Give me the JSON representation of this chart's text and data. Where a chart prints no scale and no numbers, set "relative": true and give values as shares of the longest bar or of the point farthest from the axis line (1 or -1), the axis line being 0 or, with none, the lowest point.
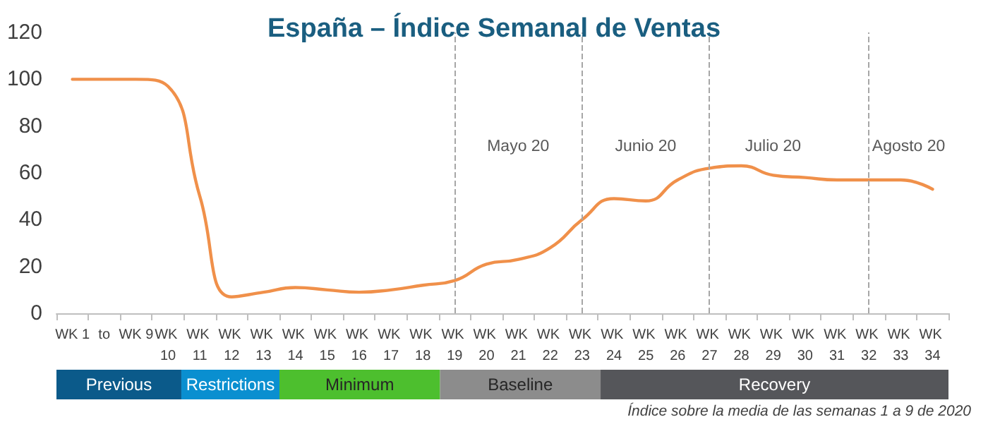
{
  "chart_data": [
    {
      "type": "line",
      "title": "España – Índice Semanal de Ventas",
      "categories": [
        "WK 1",
        "to",
        "WK 9",
        "WK 10",
        "WK 11",
        "WK 12",
        "WK 13",
        "WK 14",
        "WK 15",
        "WK 16",
        "WK 17",
        "WK 18",
        "WK 19",
        "WK 20",
        "WK 21",
        "WK 22",
        "WK 23",
        "WK 24",
        "WK 25",
        "WK 26",
        "WK 27",
        "WK 28",
        "WK 29",
        "WK 30",
        "WK 31",
        "WK 32",
        "WK 33",
        "WK 34"
      ],
      "series": [
        {
          "color": "#f0904a",
          "values": [
            100,
            100,
            100,
            97,
            50,
            7,
            9,
            11,
            10,
            9,
            10,
            12,
            14,
            21,
            23,
            28,
            40,
            49,
            48,
            57,
            62,
            63,
            59,
            58,
            57,
            57,
            57,
            53
          ]
        }
      ],
      "ylim": [
        0,
        120
      ],
      "yticks": [
        0,
        20,
        40,
        60,
        80,
        100,
        120
      ],
      "grid": false,
      "marker": "none",
      "line_style": "solid",
      "ref_lines": [
        {
          "axis": "x",
          "value": "WK 19",
          "label": "Mayo 20",
          "color": "#a6a6a6",
          "line_style": "dashed"
        },
        {
          "axis": "x",
          "value": "WK 23",
          "label": "Junio 20",
          "color": "#a6a6a6",
          "line_style": "dashed"
        },
        {
          "axis": "x",
          "value": "WK 27",
          "label": "Julio 20",
          "color": "#a6a6a6",
          "line_style": "dashed"
        },
        {
          "axis": "x",
          "value": "WK 32",
          "label": "Agosto 20",
          "color": "#a6a6a6",
          "line_style": "dashed"
        }
      ],
      "annotations": [
        "Índice sobre la media de las semanas 1 a 9 de 2020"
      ]
    },
    {
      "type": "bar",
      "orientation": "horizontal",
      "stacked": true,
      "relative": true,
      "categories": [
        null
      ],
      "series": [
        {
          "name": "Previous",
          "color": "#0b5a8a",
          "values": [
            0.14
          ]
        },
        {
          "name": "Restrictions",
          "color": "#0a8fd0",
          "values": [
            0.11
          ]
        },
        {
          "name": "Minimum",
          "color": "#4dbf2e",
          "values": [
            0.18
          ]
        },
        {
          "name": "Baseline",
          "color": "#8c8c8c",
          "values": [
            0.18
          ]
        },
        {
          "name": "Recovery",
          "color": "#55565a",
          "values": [
            0.39
          ]
        }
      ]
    }
  ]
}
